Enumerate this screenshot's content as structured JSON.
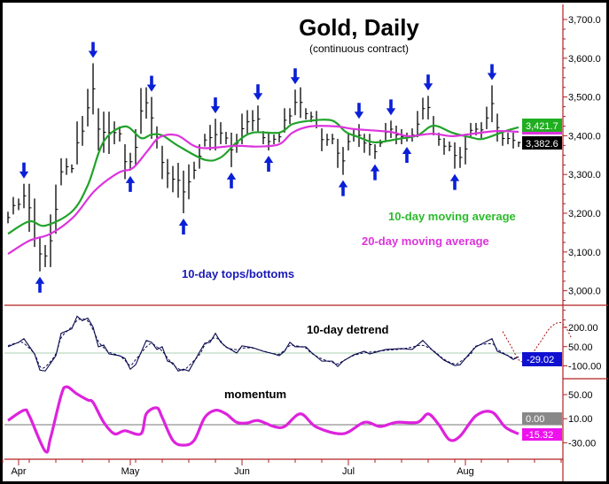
{
  "chart_data": [
    {
      "type": "ohlc-bar",
      "title": "Gold, Daily",
      "subtitle": "(continuous contract)",
      "ylim": [
        2950,
        3730
      ],
      "y_ticks": [
        "3,000.0",
        "3,100.0",
        "3,200.0",
        "3,300.0",
        "3,400.0",
        "3,500.0",
        "3,600.0",
        "3,700.0"
      ],
      "y_tick_values": [
        3000,
        3100,
        3200,
        3300,
        3400,
        3500,
        3600,
        3700
      ],
      "x_ticks": [
        {
          "label": "Apr",
          "bar": 2
        },
        {
          "label": "May",
          "bar": 23
        },
        {
          "label": "Jun",
          "bar": 44
        },
        {
          "label": "Jul",
          "bar": 64
        },
        {
          "label": "Aug",
          "bar": 86
        }
      ],
      "bars_hlc": [
        [
          3204,
          3174,
          3189
        ],
        [
          3242,
          3197,
          3220
        ],
        [
          3238,
          3208,
          3223
        ],
        [
          3276,
          3213,
          3245
        ],
        [
          3276,
          3152,
          3214
        ],
        [
          3238,
          3113,
          3176
        ],
        [
          3140,
          3050,
          3095
        ],
        [
          3118,
          3061,
          3090
        ],
        [
          3197,
          3061,
          3129
        ],
        [
          3274,
          3147,
          3210
        ],
        [
          3342,
          3272,
          3307
        ],
        [
          3342,
          3299,
          3320
        ],
        [
          3326,
          3304,
          3315
        ],
        [
          3437,
          3326,
          3382
        ],
        [
          3451,
          3374,
          3412
        ],
        [
          3521,
          3424,
          3472
        ],
        [
          3587,
          3455,
          3521
        ],
        [
          3471,
          3362,
          3417
        ],
        [
          3462,
          3356,
          3409
        ],
        [
          3462,
          3353,
          3408
        ],
        [
          3437,
          3378,
          3408
        ],
        [
          3424,
          3385,
          3405
        ],
        [
          3378,
          3288,
          3333
        ],
        [
          3356,
          3310,
          3333
        ],
        [
          3417,
          3322,
          3370
        ],
        [
          3523,
          3405,
          3464
        ],
        [
          3525,
          3444,
          3485
        ],
        [
          3500,
          3392,
          3446
        ],
        [
          3424,
          3367,
          3396
        ],
        [
          3374,
          3288,
          3331
        ],
        [
          3340,
          3265,
          3303
        ],
        [
          3322,
          3254,
          3288
        ],
        [
          3330,
          3240,
          3285
        ],
        [
          3310,
          3200,
          3255
        ],
        [
          3326,
          3236,
          3281
        ],
        [
          3333,
          3288,
          3311
        ],
        [
          3378,
          3315,
          3347
        ],
        [
          3405,
          3372,
          3389
        ],
        [
          3428,
          3362,
          3395
        ],
        [
          3444,
          3362,
          3403
        ],
        [
          3435,
          3378,
          3407
        ],
        [
          3410,
          3378,
          3394
        ],
        [
          3408,
          3319,
          3364
        ],
        [
          3405,
          3356,
          3381
        ],
        [
          3457,
          3378,
          3418
        ],
        [
          3466,
          3405,
          3436
        ],
        [
          3466,
          3412,
          3439
        ],
        [
          3478,
          3408,
          3443
        ],
        [
          3412,
          3378,
          3395
        ],
        [
          3408,
          3362,
          3385
        ],
        [
          3403,
          3378,
          3391
        ],
        [
          3410,
          3383,
          3397
        ],
        [
          3471,
          3408,
          3440
        ],
        [
          3471,
          3430,
          3451
        ],
        [
          3519,
          3453,
          3486
        ],
        [
          3525,
          3446,
          3486
        ],
        [
          3471,
          3442,
          3457
        ],
        [
          3462,
          3435,
          3449
        ],
        [
          3464,
          3419,
          3442
        ],
        [
          3419,
          3360,
          3390
        ],
        [
          3405,
          3374,
          3390
        ],
        [
          3405,
          3378,
          3392
        ],
        [
          3392,
          3317,
          3355
        ],
        [
          3371,
          3299,
          3335
        ],
        [
          3408,
          3362,
          3385
        ],
        [
          3417,
          3385,
          3401
        ],
        [
          3430,
          3371,
          3401
        ],
        [
          3405,
          3356,
          3381
        ],
        [
          3405,
          3349,
          3377
        ],
        [
          3378,
          3340,
          3359
        ],
        [
          3390,
          3371,
          3381
        ],
        [
          3433,
          3385,
          3409
        ],
        [
          3439,
          3394,
          3417
        ],
        [
          3426,
          3378,
          3402
        ],
        [
          3417,
          3378,
          3398
        ],
        [
          3408,
          3385,
          3397
        ],
        [
          3419,
          3385,
          3402
        ],
        [
          3464,
          3396,
          3430
        ],
        [
          3498,
          3442,
          3470
        ],
        [
          3503,
          3442,
          3473
        ],
        [
          3451,
          3401,
          3426
        ],
        [
          3408,
          3374,
          3391
        ],
        [
          3394,
          3351,
          3373
        ],
        [
          3385,
          3360,
          3373
        ],
        [
          3383,
          3315,
          3349
        ],
        [
          3371,
          3317,
          3344
        ],
        [
          3405,
          3326,
          3366
        ],
        [
          3433,
          3394,
          3414
        ],
        [
          3433,
          3401,
          3417
        ],
        [
          3435,
          3394,
          3415
        ],
        [
          3475,
          3417,
          3446
        ],
        [
          3530,
          3435,
          3483
        ],
        [
          3457,
          3385,
          3421
        ],
        [
          3412,
          3374,
          3393
        ],
        [
          3408,
          3378,
          3393
        ],
        [
          3408,
          3367,
          3388
        ],
        [
          3385,
          3371,
          3382.6
        ]
      ],
      "series": [
        {
          "name": "10-day moving average",
          "color": "#22a22a",
          "last_label": "3,421.7",
          "points": [
            [
              0,
              3147
            ],
            [
              4,
              3179
            ],
            [
              7,
              3168
            ],
            [
              12,
              3204
            ],
            [
              15,
              3272
            ],
            [
              18,
              3385
            ],
            [
              22,
              3424
            ],
            [
              25,
              3394
            ],
            [
              27,
              3403
            ],
            [
              29,
              3401
            ],
            [
              32,
              3374
            ],
            [
              37,
              3338
            ],
            [
              40,
              3344
            ],
            [
              43,
              3383
            ],
            [
              46,
              3408
            ],
            [
              51,
              3408
            ],
            [
              53.5,
              3430
            ],
            [
              57,
              3439
            ],
            [
              61,
              3439
            ],
            [
              63.5,
              3410
            ],
            [
              66,
              3396
            ],
            [
              69,
              3383
            ],
            [
              73.5,
              3392
            ],
            [
              77,
              3401
            ],
            [
              80,
              3426
            ],
            [
              83.5,
              3408
            ],
            [
              87,
              3396
            ],
            [
              89.3,
              3392
            ],
            [
              93.5,
              3412
            ],
            [
              96,
              3421.7
            ]
          ]
        },
        {
          "name": "20-day moving average",
          "color": "#dd33dd",
          "points": [
            [
              0,
              3095
            ],
            [
              4,
              3129
            ],
            [
              8,
              3147
            ],
            [
              12.3,
              3190
            ],
            [
              16.3,
              3258
            ],
            [
              20.7,
              3304
            ],
            [
              23.5,
              3317
            ],
            [
              26.3,
              3362
            ],
            [
              28.5,
              3396
            ],
            [
              31.8,
              3401
            ],
            [
              36,
              3369
            ],
            [
              42.7,
              3374
            ],
            [
              46.8,
              3372
            ],
            [
              51,
              3378
            ],
            [
              53.5,
              3408
            ],
            [
              56.8,
              3424
            ],
            [
              61.8,
              3424
            ],
            [
              65.2,
              3417
            ],
            [
              71.8,
              3410
            ],
            [
              75.2,
              3399
            ],
            [
              79.7,
              3405
            ],
            [
              83.5,
              3399
            ],
            [
              87.3,
              3405
            ],
            [
              91.8,
              3412
            ],
            [
              96,
              3410
            ]
          ]
        }
      ],
      "last_close_label": "3,382.6",
      "tops_bars": [
        3,
        16,
        27,
        39,
        47,
        54,
        66,
        72,
        79,
        91
      ],
      "bottoms_bars": [
        6,
        23,
        33,
        42,
        49,
        63,
        69,
        75,
        84
      ],
      "annotations": {
        "ma10": "10-day moving average",
        "ma20": "20-day moving average",
        "tops_bottoms": "10-day tops/bottoms"
      }
    },
    {
      "type": "line",
      "title": "10-day detrend",
      "y_ticks": [
        "200.00",
        "50.00",
        "-100.00"
      ],
      "y_tick_values": [
        200,
        50,
        -100
      ],
      "last_label": "-29.02",
      "points": [
        [
          0,
          49
        ],
        [
          2,
          84
        ],
        [
          3,
          112
        ],
        [
          5,
          -7
        ],
        [
          6,
          -133
        ],
        [
          7,
          -140
        ],
        [
          9,
          -21
        ],
        [
          10,
          154
        ],
        [
          12,
          189
        ],
        [
          13,
          287
        ],
        [
          14,
          252
        ],
        [
          15,
          273
        ],
        [
          16,
          203
        ],
        [
          17,
          49
        ],
        [
          18,
          63
        ],
        [
          19,
          -7
        ],
        [
          21,
          -21
        ],
        [
          22,
          -42
        ],
        [
          23,
          -126
        ],
        [
          24,
          -91
        ],
        [
          26,
          98
        ],
        [
          27,
          84
        ],
        [
          28,
          28
        ],
        [
          29,
          49
        ],
        [
          30,
          -63
        ],
        [
          31,
          -77
        ],
        [
          32,
          -140
        ],
        [
          33,
          -126
        ],
        [
          34,
          -140
        ],
        [
          36,
          7
        ],
        [
          37,
          77
        ],
        [
          38,
          84
        ],
        [
          39,
          154
        ],
        [
          40,
          84
        ],
        [
          41,
          49
        ],
        [
          43,
          0
        ],
        [
          44,
          56
        ],
        [
          46,
          42
        ],
        [
          48,
          14
        ],
        [
          50,
          -7
        ],
        [
          51,
          -21
        ],
        [
          52,
          14
        ],
        [
          53,
          84
        ],
        [
          54,
          49
        ],
        [
          56,
          49
        ],
        [
          57,
          7
        ],
        [
          59,
          -63
        ],
        [
          61,
          -63
        ],
        [
          62,
          -105
        ],
        [
          63,
          -63
        ],
        [
          65,
          -14
        ],
        [
          67,
          14
        ],
        [
          68,
          -7
        ],
        [
          71,
          28
        ],
        [
          74,
          35
        ],
        [
          76,
          28
        ],
        [
          78,
          98
        ],
        [
          80,
          14
        ],
        [
          82,
          -56
        ],
        [
          84,
          -98
        ],
        [
          85,
          -91
        ],
        [
          87,
          7
        ],
        [
          88,
          49
        ],
        [
          91,
          112
        ],
        [
          92,
          14
        ],
        [
          94,
          -21
        ],
        [
          95,
          -50
        ],
        [
          96,
          -29.02
        ]
      ],
      "projection": [
        [
          93,
          168
        ],
        [
          94.5,
          60
        ],
        [
          96.3,
          -63
        ],
        [
          98,
          -30
        ],
        [
          100,
          80
        ],
        [
          102,
          200
        ],
        [
          103.8,
          238
        ],
        [
          105,
          190
        ],
        [
          106,
          110
        ]
      ]
    },
    {
      "type": "line",
      "title": "momentum",
      "y_ticks": [
        "50.00",
        "10.00",
        "-30.00"
      ],
      "y_tick_values": [
        50,
        10,
        -30
      ],
      "zero_label": "0.00",
      "last_label": "-15.32",
      "points": [
        [
          0,
          7
        ],
        [
          3,
          24
        ],
        [
          4,
          15
        ],
        [
          7,
          -44
        ],
        [
          8,
          -22
        ],
        [
          10,
          49
        ],
        [
          11,
          63
        ],
        [
          13,
          51
        ],
        [
          15,
          41
        ],
        [
          16,
          37
        ],
        [
          18,
          4
        ],
        [
          20,
          -15
        ],
        [
          22,
          -10
        ],
        [
          25,
          -15
        ],
        [
          26,
          18
        ],
        [
          28,
          28
        ],
        [
          29,
          12
        ],
        [
          31,
          -26
        ],
        [
          33,
          -34
        ],
        [
          35,
          -26
        ],
        [
          37,
          12
        ],
        [
          39,
          24
        ],
        [
          41,
          18
        ],
        [
          43,
          4
        ],
        [
          45,
          3
        ],
        [
          47,
          7
        ],
        [
          50,
          -3
        ],
        [
          52,
          -3
        ],
        [
          55,
          18
        ],
        [
          58,
          -4
        ],
        [
          63,
          -15
        ],
        [
          67,
          4
        ],
        [
          70,
          -3
        ],
        [
          73,
          4
        ],
        [
          77,
          4
        ],
        [
          79,
          18
        ],
        [
          81,
          0
        ],
        [
          83,
          -25
        ],
        [
          85,
          -19
        ],
        [
          88,
          15
        ],
        [
          91,
          21
        ],
        [
          93.5,
          -4
        ],
        [
          96,
          -15.32
        ]
      ]
    }
  ],
  "colors": {
    "axis": "#b22222",
    "bars": "#000000",
    "arrows": "#0a1fd6",
    "detrend": "#0a0a50",
    "projection": "#a01010",
    "momentum": "#dd22dd",
    "ma10_box": "#1fae1f",
    "detrend_box": "#1010d0",
    "zero_box": "#888888"
  }
}
